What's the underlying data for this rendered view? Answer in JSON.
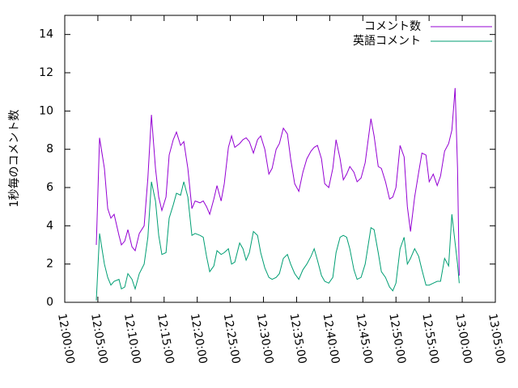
{
  "chart_data": {
    "type": "line",
    "y_label": "1秒毎のコメント数",
    "x": [
      "12:04:46",
      "12:05:15",
      "12:05:59",
      "12:06:29",
      "12:06:58",
      "12:07:27",
      "12:08:11",
      "12:08:33",
      "12:09:03",
      "12:09:32",
      "12:10:09",
      "12:10:38",
      "12:11:15",
      "12:11:59",
      "12:12:33",
      "12:13:05",
      "12:13:42",
      "12:14:11",
      "12:14:40",
      "12:15:17",
      "12:15:46",
      "12:16:23",
      "12:16:52",
      "12:17:29",
      "12:17:58",
      "12:18:35",
      "12:19:12",
      "12:19:41",
      "12:20:25",
      "12:20:54",
      "12:21:24",
      "12:21:53",
      "12:22:30",
      "12:22:59",
      "12:23:36",
      "12:24:05",
      "12:24:42",
      "12:25:11",
      "12:25:40",
      "12:26:24",
      "12:26:54",
      "12:27:23",
      "12:27:52",
      "12:28:29",
      "12:29:06",
      "12:29:35",
      "12:30:12",
      "12:30:49",
      "12:31:18",
      "12:31:55",
      "12:32:24",
      "12:33:00",
      "12:33:37",
      "12:34:06",
      "12:34:43",
      "12:35:20",
      "12:35:57",
      "12:36:33",
      "12:37:10",
      "12:37:39",
      "12:38:09",
      "12:38:45",
      "12:39:15",
      "12:39:51",
      "12:40:28",
      "12:40:57",
      "12:41:34",
      "12:42:03",
      "12:42:33",
      "12:43:02",
      "12:43:39",
      "12:44:08",
      "12:44:44",
      "12:45:21",
      "12:46:13",
      "12:46:42",
      "12:47:19",
      "12:47:48",
      "12:48:25",
      "12:49:02",
      "12:49:31",
      "12:50:00",
      "12:50:37",
      "12:51:14",
      "12:51:43",
      "12:52:12",
      "12:52:49",
      "12:53:26",
      "12:53:55",
      "12:54:32",
      "12:55:01",
      "12:55:38",
      "12:56:14",
      "12:56:44",
      "12:57:20",
      "12:57:57",
      "12:58:26",
      "12:58:56",
      "12:59:18",
      "12:59:33"
    ],
    "series": [
      {
        "name": "コメント数",
        "color": "#9400d3",
        "values": [
          3.0,
          8.6,
          7.0,
          4.9,
          4.4,
          4.6,
          3.5,
          3.0,
          3.2,
          3.8,
          2.9,
          2.7,
          3.6,
          4.0,
          6.5,
          9.8,
          7.0,
          5.5,
          4.8,
          5.5,
          7.7,
          8.5,
          8.9,
          8.2,
          8.4,
          7.0,
          4.9,
          5.3,
          5.2,
          5.3,
          5.0,
          4.6,
          5.4,
          6.1,
          5.3,
          6.2,
          8.1,
          8.7,
          8.1,
          8.3,
          8.5,
          8.6,
          8.4,
          7.8,
          8.5,
          8.7,
          8.0,
          6.7,
          7.0,
          8.0,
          8.3,
          9.1,
          8.8,
          7.5,
          6.2,
          5.8,
          6.8,
          7.5,
          7.9,
          8.1,
          8.2,
          7.5,
          6.2,
          6.0,
          7.0,
          8.5,
          7.5,
          6.4,
          6.7,
          7.1,
          6.8,
          6.3,
          6.5,
          7.3,
          9.6,
          8.7,
          7.1,
          7.0,
          6.3,
          5.4,
          5.5,
          6.0,
          8.2,
          7.6,
          5.0,
          3.7,
          5.5,
          6.8,
          7.8,
          7.7,
          6.3,
          6.7,
          6.1,
          6.6,
          7.9,
          8.3,
          9.0,
          11.2,
          7.0,
          1.4
        ]
      },
      {
        "name": "英語コメント",
        "color": "#009e73",
        "values": [
          0.1,
          3.6,
          2.0,
          1.3,
          0.9,
          1.1,
          1.2,
          0.7,
          0.8,
          1.5,
          1.2,
          0.7,
          1.5,
          2.0,
          3.4,
          6.3,
          5.3,
          3.5,
          2.5,
          2.6,
          4.4,
          5.1,
          5.7,
          5.6,
          6.3,
          5.5,
          3.5,
          3.6,
          3.5,
          3.4,
          2.4,
          1.6,
          1.9,
          2.7,
          2.5,
          2.6,
          2.8,
          2.0,
          2.1,
          3.1,
          2.8,
          2.2,
          2.6,
          3.7,
          3.5,
          2.6,
          1.8,
          1.3,
          1.2,
          1.3,
          1.5,
          2.3,
          2.5,
          2.0,
          1.5,
          1.2,
          1.7,
          2.0,
          2.4,
          2.8,
          2.2,
          1.4,
          1.1,
          1.0,
          1.3,
          2.6,
          3.4,
          3.5,
          3.4,
          2.8,
          1.7,
          1.2,
          1.3,
          2.0,
          3.9,
          3.8,
          2.6,
          1.6,
          1.3,
          0.8,
          0.6,
          1.0,
          2.8,
          3.4,
          2.0,
          2.3,
          2.8,
          2.4,
          1.7,
          0.9,
          0.9,
          1.0,
          1.1,
          1.1,
          2.3,
          1.9,
          4.6,
          3.1,
          2.0,
          1.0
        ]
      }
    ],
    "xlim": [
      "12:00:00",
      "13:05:00"
    ],
    "xticks": [
      "12:00:00",
      "12:05:00",
      "12:10:00",
      "12:15:00",
      "12:20:00",
      "12:25:00",
      "12:30:00",
      "12:35:00",
      "12:40:00",
      "12:45:00",
      "12:50:00",
      "12:55:00",
      "13:00:00",
      "13:05:00"
    ],
    "ylim": [
      0,
      15
    ],
    "yticks": [
      0,
      2,
      4,
      6,
      8,
      10,
      12,
      14
    ],
    "legend": "top-right"
  }
}
